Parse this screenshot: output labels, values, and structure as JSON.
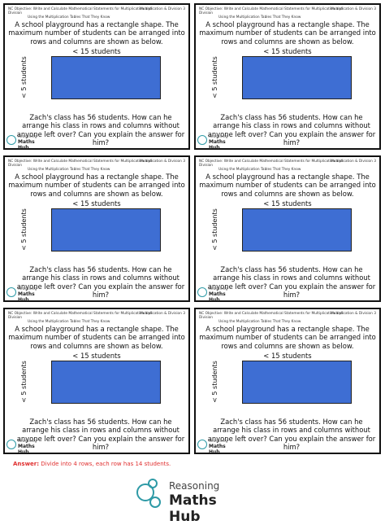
{
  "cards": [
    {
      "header_objective": "NC Objective: Write and Calculate Mathematical Statements for Multiplication and Division",
      "header_sub": "Using the Multiplication Tables That They Know",
      "tag": "Multiplication & Division 3",
      "intro": "A school playground has a rectangle shape. The maximum number of students can be arranged into rows and columns are shown as below.",
      "width_label": "< 15 students",
      "height_label": "< 5 students",
      "question": "Zach's class has 56 students. How can he arrange his class in rows and columns without anyone left over? Can you explain the answer for him?",
      "logo_top": "Reasoning",
      "logo_bottom": "Maths Hub"
    },
    {
      "header_objective": "NC Objective: Write and Calculate Mathematical Statements for Multiplication and Division",
      "header_sub": "Using the Multiplication Tables That They Know",
      "tag": "Multiplication & Division 3",
      "intro": "A school playground has a rectangle shape. The maximum number of students can be arranged into rows and columns are shown as below.",
      "width_label": "< 15 students",
      "height_label": "< 5 students",
      "question": "Zach's class has 56 students. How can he arrange his class in rows and columns without anyone left over? Can you explain the answer for him?",
      "logo_top": "Reasoning",
      "logo_bottom": "Maths Hub"
    },
    {
      "header_objective": "NC Objective: Write and Calculate Mathematical Statements for Multiplication and Division",
      "header_sub": "Using the Multiplication Tables That They Know",
      "tag": "Multiplication & Division 3",
      "intro": "A school playground has a rectangle shape. The maximum number of students can be arranged into rows and columns are shown as below.",
      "width_label": "< 15 students",
      "height_label": "< 5 students",
      "question": "Zach's class has 56 students. How can he arrange his class in rows and columns without anyone left over? Can you explain the answer for him?",
      "logo_top": "Reasoning",
      "logo_bottom": "Maths Hub"
    },
    {
      "header_objective": "NC Objective: Write and Calculate Mathematical Statements for Multiplication and Division",
      "header_sub": "Using the Multiplication Tables That They Know",
      "tag": "Multiplication & Division 3",
      "intro": "A school playground has a rectangle shape. The maximum number of students can be arranged into rows and columns are shown as below.",
      "width_label": "< 15 students",
      "height_label": "< 5 students",
      "question": "Zach's class has 56 students. How can he arrange his class in rows and columns without anyone left over? Can you explain the answer for him?",
      "logo_top": "Reasoning",
      "logo_bottom": "Maths Hub"
    },
    {
      "header_objective": "NC Objective: Write and Calculate Mathematical Statements for Multiplication and Division",
      "header_sub": "Using the Multiplication Tables That They Know",
      "tag": "Multiplication & Division 3",
      "intro": "A school playground has a rectangle shape. The maximum number of students can be arranged into rows and columns are shown as below.",
      "width_label": "< 15 students",
      "height_label": "< 5 students",
      "question": "Zach's class has 56 students. How can he arrange his class in rows and columns without anyone left over? Can you explain the answer for him?",
      "logo_top": "Reasoning",
      "logo_bottom": "Maths Hub"
    },
    {
      "header_objective": "NC Objective: Write and Calculate Mathematical Statements for Multiplication and Division",
      "header_sub": "Using the Multiplication Tables That They Know",
      "tag": "Multiplication & Division 3",
      "intro": "A school playground has a rectangle shape. The maximum number of students can be arranged into rows and columns are shown as below.",
      "width_label": "< 15 students",
      "height_label": "< 5 students",
      "question": "Zach's class has 56 students. How can he arrange his class in rows and columns without anyone left over? Can you explain the answer for him?",
      "logo_top": "Reasoning",
      "logo_bottom": "Maths Hub"
    }
  ],
  "answer": {
    "label": "Answer:",
    "text": "Divide into 4 rows, each row has 14 students."
  },
  "footer_logo": {
    "top": "Reasoning",
    "bottom": "Maths Hub"
  },
  "colors": {
    "playground": "#3e6ed3",
    "answer": "#e03030",
    "logo": "#2e9aa6"
  }
}
